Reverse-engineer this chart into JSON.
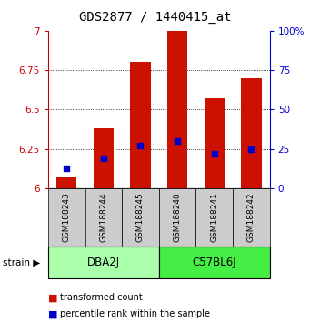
{
  "title": "GDS2877 / 1440415_at",
  "samples": [
    "GSM188243",
    "GSM188244",
    "GSM188245",
    "GSM188240",
    "GSM188241",
    "GSM188242"
  ],
  "red_values": [
    6.07,
    6.38,
    6.8,
    7.0,
    6.57,
    6.7
  ],
  "blue_percentiles": [
    13,
    19,
    27,
    30,
    22,
    25
  ],
  "ylim_left": [
    6.0,
    7.0
  ],
  "ylim_right": [
    0,
    100
  ],
  "left_ticks": [
    6.0,
    6.25,
    6.5,
    6.75,
    7.0
  ],
  "right_ticks": [
    0,
    25,
    50,
    75,
    100
  ],
  "left_tick_labels": [
    "6",
    "6.25",
    "6.5",
    "6.75",
    "7"
  ],
  "right_tick_labels": [
    "0",
    "25",
    "50",
    "75",
    "100%"
  ],
  "groups": [
    {
      "label": "DBA2J",
      "indices": [
        0,
        1,
        2
      ],
      "color": "#aaffaa"
    },
    {
      "label": "C57BL6J",
      "indices": [
        3,
        4,
        5
      ],
      "color": "#44ee44"
    }
  ],
  "bar_color": "#cc1100",
  "blue_color": "#0000cc",
  "bar_width": 0.55,
  "sample_box_color": "#cccccc",
  "legend_items": [
    {
      "color": "#cc1100",
      "label": "transformed count"
    },
    {
      "color": "#0000cc",
      "label": "percentile rank within the sample"
    }
  ],
  "strain_label": "strain",
  "left_axis_color": "#cc0000",
  "right_axis_color": "#0000cc",
  "title_fontsize": 10,
  "tick_fontsize": 7.5,
  "sample_fontsize": 6.5,
  "group_fontsize": 8.5,
  "legend_fontsize": 7
}
